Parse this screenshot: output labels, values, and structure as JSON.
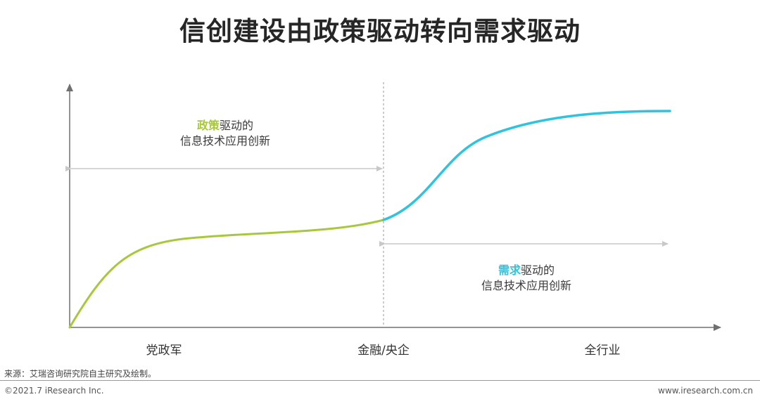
{
  "title": "信创建设由政策驱动转向需求驱动",
  "annotations": {
    "policy": {
      "highlight": "政策",
      "rest": "驱动的",
      "line2": "信息技术应用创新"
    },
    "demand": {
      "highlight": "需求",
      "rest": "驱动的",
      "line2": "信息技术应用创新"
    }
  },
  "x_categories": [
    "党政军",
    "金融/央企",
    "全行业"
  ],
  "colors": {
    "policy_curve": "#a8c83c",
    "demand_curve": "#2ec4e0",
    "arrows": "#c8c8c8",
    "axis": "#707070"
  },
  "source": "来源：艾瑞咨询研究院自主研究及绘制。",
  "footer": {
    "copyright": "©2021.7 iResearch Inc.",
    "website": "www.iresearch.com.cn"
  }
}
